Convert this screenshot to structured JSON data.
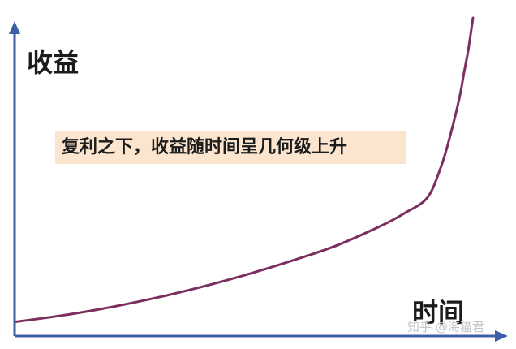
{
  "chart_data": {
    "type": "line",
    "ylabel": "收益",
    "xlabel": "时间",
    "annotation": "复利之下，收益随时间呈几何级上升",
    "grid": false,
    "legend": "none",
    "series": [
      {
        "color": "#7b2f5e",
        "x": [
          0,
          0.1,
          0.2,
          0.3,
          0.4,
          0.5,
          0.6,
          0.7,
          0.8,
          0.85,
          0.9,
          0.93,
          0.95,
          0.97,
          0.98,
          0.99,
          1.0
        ],
        "y": [
          0.02,
          0.04,
          0.065,
          0.095,
          0.13,
          0.17,
          0.215,
          0.265,
          0.33,
          0.37,
          0.42,
          0.52,
          0.62,
          0.74,
          0.82,
          0.9,
          1.0
        ]
      }
    ],
    "xlim": [
      0,
      1
    ],
    "ylim": [
      0,
      1
    ],
    "axis_color": "#3d5fa6"
  },
  "watermark": "知乎 @海猫君"
}
